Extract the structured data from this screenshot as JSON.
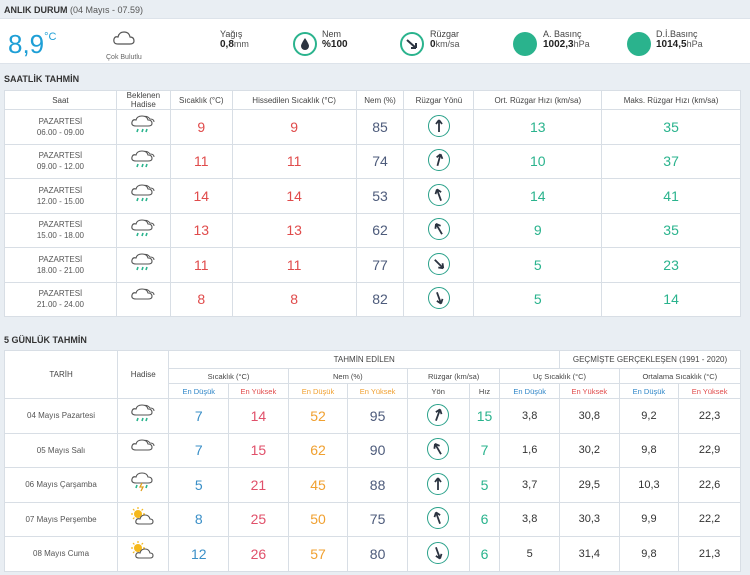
{
  "current": {
    "title": "ANLIK DURUM",
    "subtitle": "(04 Mayıs - 07.59)",
    "temperature": "8,9",
    "temp_unit": "°C",
    "condition": "Çok Bulutlu",
    "rain_label": "Yağış",
    "rain_value": "0,8",
    "rain_unit": "mm",
    "humidity_label": "Nem",
    "humidity_value": "%100",
    "wind_label": "Rüzgar",
    "wind_value": "0",
    "wind_unit": "km/sa",
    "pressure_label": "A. Basınç",
    "pressure_value": "1002,3",
    "pressure_unit": "hPa",
    "sea_pressure_label": "D.İ.Basınç",
    "sea_pressure_value": "1014,5",
    "sea_pressure_unit": "hPa",
    "accent_color": "#1e9fd6",
    "teal_color": "#2ab38d"
  },
  "hourly": {
    "title": "SAATLİK TAHMİN",
    "headers": [
      "Saat",
      "Beklenen Hadise",
      "Sıcaklık (°C)",
      "Hissedilen Sıcaklık (°C)",
      "Nem (%)",
      "Rüzgar Yönü",
      "Ort. Rüzgar Hızı (km/sa)",
      "Maks. Rüzgar Hızı (km/sa)"
    ],
    "rows": [
      {
        "day": "PAZARTESİ",
        "time": "06.00 - 09.00",
        "icon": "cloud-rain-icon",
        "temp": "9",
        "feels": "9",
        "humidity": "85",
        "wind_dir_deg": 180,
        "avg_wind": "13",
        "max_wind": "35"
      },
      {
        "day": "PAZARTESİ",
        "time": "09.00 - 12.00",
        "icon": "cloud-rain-icon",
        "temp": "11",
        "feels": "11",
        "humidity": "74",
        "wind_dir_deg": 195,
        "avg_wind": "10",
        "max_wind": "37"
      },
      {
        "day": "PAZARTESİ",
        "time": "12.00 - 15.00",
        "icon": "cloud-rain-icon",
        "temp": "14",
        "feels": "14",
        "humidity": "53",
        "wind_dir_deg": 160,
        "avg_wind": "14",
        "max_wind": "41"
      },
      {
        "day": "PAZARTESİ",
        "time": "15.00 - 18.00",
        "icon": "cloud-rain-icon",
        "temp": "13",
        "feels": "13",
        "humidity": "62",
        "wind_dir_deg": 150,
        "avg_wind": "9",
        "max_wind": "35"
      },
      {
        "day": "PAZARTESİ",
        "time": "18.00 - 21.00",
        "icon": "cloud-rain-icon",
        "temp": "11",
        "feels": "11",
        "humidity": "77",
        "wind_dir_deg": 315,
        "avg_wind": "5",
        "max_wind": "23"
      },
      {
        "day": "PAZARTESİ",
        "time": "21.00 - 24.00",
        "icon": "cloud-icon",
        "temp": "8",
        "feels": "8",
        "humidity": "82",
        "wind_dir_deg": 340,
        "avg_wind": "5",
        "max_wind": "14"
      }
    ]
  },
  "daily": {
    "title": "5 GÜNLÜK TAHMİN",
    "group_forecast": "TAHMİN EDİLEN",
    "group_history": "GEÇMİŞTE GERÇEKLEŞEN (1991 - 2020)",
    "date_header": "TARİH",
    "hadise_header": "Hadise",
    "temp_header": "Sıcaklık (°C)",
    "humidity_header": "Nem (%)",
    "wind_header": "Rüzgar (km/sa)",
    "extreme_header": "Uç Sıcaklık (°C)",
    "avg_header": "Ortalama Sıcaklık (°C)",
    "low_label": "En Düşük",
    "high_label": "En Yüksek",
    "dir_label": "Yön",
    "speed_label": "Hız",
    "rows": [
      {
        "date": "04 Mayıs Pazartesi",
        "icon": "cloud-rain-icon",
        "t_low": "7",
        "t_high": "14",
        "h_low": "52",
        "h_high": "95",
        "wind_dir_deg": 200,
        "wind_speed": "15",
        "ext_low": "3,8",
        "ext_high": "30,8",
        "avg_low": "9,2",
        "avg_high": "22,3"
      },
      {
        "date": "05 Mayıs Salı",
        "icon": "cloud-icon",
        "t_low": "7",
        "t_high": "15",
        "h_low": "62",
        "h_high": "90",
        "wind_dir_deg": 150,
        "wind_speed": "7",
        "ext_low": "1,6",
        "ext_high": "30,2",
        "avg_low": "9,8",
        "avg_high": "22,9"
      },
      {
        "date": "06 Mayıs Çarşamba",
        "icon": "cloud-storm-icon",
        "t_low": "5",
        "t_high": "21",
        "h_low": "45",
        "h_high": "88",
        "wind_dir_deg": 180,
        "wind_speed": "5",
        "ext_low": "3,7",
        "ext_high": "29,5",
        "avg_low": "10,3",
        "avg_high": "22,6"
      },
      {
        "date": "07 Mayıs Perşembe",
        "icon": "sun-cloud-icon",
        "t_low": "8",
        "t_high": "25",
        "h_low": "50",
        "h_high": "75",
        "wind_dir_deg": 160,
        "wind_speed": "6",
        "ext_low": "3,8",
        "ext_high": "30,3",
        "avg_low": "9,9",
        "avg_high": "22,2"
      },
      {
        "date": "08 Mayıs Cuma",
        "icon": "sun-cloud-icon",
        "t_low": "12",
        "t_high": "26",
        "h_low": "57",
        "h_high": "80",
        "wind_dir_deg": 340,
        "wind_speed": "6",
        "ext_low": "5",
        "ext_high": "31,4",
        "avg_low": "9,8",
        "avg_high": "21,3"
      }
    ]
  }
}
